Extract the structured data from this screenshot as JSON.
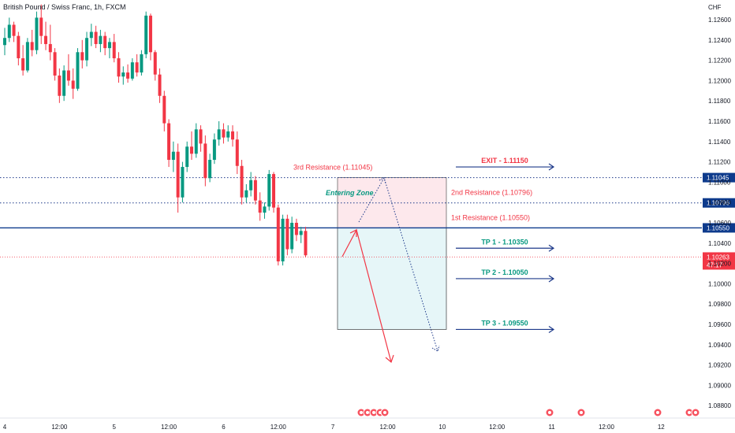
{
  "chart_data": {
    "type": "candlestick",
    "title": "British Pound / Swiss Franc, 1h, FXCM",
    "currency": "CHF",
    "y_axis": {
      "min": 1.0875,
      "max": 1.1275,
      "ticks": [
        "1.12600",
        "1.12400",
        "1.12200",
        "1.12000",
        "1.11800",
        "1.11600",
        "1.11400",
        "1.11200",
        "1.11000",
        "1.10800",
        "1.10600",
        "1.10400",
        "1.10200",
        "1.10000",
        "1.09800",
        "1.09600",
        "1.09400",
        "1.09200",
        "1.09000",
        "1.08800"
      ]
    },
    "x_axis": {
      "ticks": [
        {
          "label": "4",
          "i": 0
        },
        {
          "label": "12:00",
          "i": 12
        },
        {
          "label": "5",
          "i": 24
        },
        {
          "label": "12:00",
          "i": 36
        },
        {
          "label": "6",
          "i": 48
        },
        {
          "label": "12:00",
          "i": 60
        },
        {
          "label": "7",
          "i": 72
        },
        {
          "label": "12:00",
          "i": 84
        },
        {
          "label": "10",
          "i": 96
        },
        {
          "label": "12:00",
          "i": 108
        },
        {
          "label": "11",
          "i": 120
        },
        {
          "label": "12:00",
          "i": 132
        },
        {
          "label": "12",
          "i": 144
        }
      ]
    },
    "candles": [
      [
        1.1235,
        1.1252,
        1.1225,
        1.1242
      ],
      [
        1.1242,
        1.1262,
        1.1238,
        1.1255
      ],
      [
        1.1255,
        1.1258,
        1.1238,
        1.1244
      ],
      [
        1.1244,
        1.1248,
        1.1215,
        1.1222
      ],
      [
        1.1222,
        1.1235,
        1.1205,
        1.121
      ],
      [
        1.121,
        1.1242,
        1.1208,
        1.1238
      ],
      [
        1.1238,
        1.125,
        1.1224,
        1.123
      ],
      [
        1.123,
        1.1268,
        1.1226,
        1.1262
      ],
      [
        1.1262,
        1.1275,
        1.1236,
        1.1244
      ],
      [
        1.1244,
        1.1258,
        1.123,
        1.1236
      ],
      [
        1.1236,
        1.1255,
        1.122,
        1.1228
      ],
      [
        1.1228,
        1.1232,
        1.12,
        1.1205
      ],
      [
        1.1205,
        1.1212,
        1.1178,
        1.1185
      ],
      [
        1.1185,
        1.1215,
        1.118,
        1.121
      ],
      [
        1.121,
        1.1226,
        1.1195,
        1.12
      ],
      [
        1.12,
        1.1212,
        1.1182,
        1.1192
      ],
      [
        1.1192,
        1.1232,
        1.119,
        1.1228
      ],
      [
        1.1228,
        1.124,
        1.1212,
        1.122
      ],
      [
        1.122,
        1.1248,
        1.1214,
        1.1242
      ],
      [
        1.1242,
        1.1256,
        1.1234,
        1.1248
      ],
      [
        1.1248,
        1.1254,
        1.1232,
        1.1236
      ],
      [
        1.1236,
        1.125,
        1.1228,
        1.1244
      ],
      [
        1.1244,
        1.1248,
        1.1225,
        1.1232
      ],
      [
        1.1232,
        1.1242,
        1.1222,
        1.1238
      ],
      [
        1.1238,
        1.1246,
        1.1218,
        1.1222
      ],
      [
        1.1222,
        1.1228,
        1.1198,
        1.1204
      ],
      [
        1.1204,
        1.1214,
        1.1196,
        1.1208
      ],
      [
        1.1208,
        1.1216,
        1.1198,
        1.1202
      ],
      [
        1.1202,
        1.1222,
        1.12,
        1.1218
      ],
      [
        1.1218,
        1.1226,
        1.1204,
        1.1208
      ],
      [
        1.1208,
        1.123,
        1.1205,
        1.1226
      ],
      [
        1.1226,
        1.1268,
        1.1222,
        1.1264
      ],
      [
        1.1264,
        1.1266,
        1.122,
        1.1228
      ],
      [
        1.1228,
        1.123,
        1.12,
        1.1206
      ],
      [
        1.1206,
        1.1212,
        1.1178,
        1.1185
      ],
      [
        1.1185,
        1.119,
        1.115,
        1.1158
      ],
      [
        1.1158,
        1.1162,
        1.1115,
        1.1122
      ],
      [
        1.1122,
        1.114,
        1.111,
        1.113
      ],
      [
        1.113,
        1.1138,
        1.107,
        1.1085
      ],
      [
        1.1085,
        1.112,
        1.108,
        1.1115
      ],
      [
        1.1115,
        1.114,
        1.111,
        1.1135
      ],
      [
        1.1135,
        1.115,
        1.1122,
        1.1128
      ],
      [
        1.1128,
        1.1158,
        1.1124,
        1.1152
      ],
      [
        1.1152,
        1.1156,
        1.113,
        1.1138
      ],
      [
        1.1138,
        1.1146,
        1.1096,
        1.1104
      ],
      [
        1.1104,
        1.1128,
        1.11,
        1.1122
      ],
      [
        1.1122,
        1.1148,
        1.1118,
        1.1142
      ],
      [
        1.1142,
        1.116,
        1.1136,
        1.1152
      ],
      [
        1.1152,
        1.1158,
        1.1138,
        1.1144
      ],
      [
        1.1144,
        1.1156,
        1.114,
        1.115
      ],
      [
        1.115,
        1.1156,
        1.1135,
        1.1142
      ],
      [
        1.1142,
        1.115,
        1.1108,
        1.1116
      ],
      [
        1.1116,
        1.1122,
        1.1078,
        1.1085
      ],
      [
        1.1085,
        1.1098,
        1.108,
        1.1092
      ],
      [
        1.1092,
        1.111,
        1.1086,
        1.1102
      ],
      [
        1.1102,
        1.1106,
        1.1078,
        1.1082
      ],
      [
        1.1082,
        1.109,
        1.1062,
        1.107
      ],
      [
        1.107,
        1.108,
        1.1064,
        1.1076
      ],
      [
        1.1076,
        1.1112,
        1.1072,
        1.1108
      ],
      [
        1.1108,
        1.111,
        1.107,
        1.1075
      ],
      [
        1.1075,
        1.1078,
        1.1018,
        1.1022
      ],
      [
        1.1022,
        1.1068,
        1.1018,
        1.1064
      ],
      [
        1.1064,
        1.1068,
        1.1028,
        1.1034
      ],
      [
        1.1034,
        1.1066,
        1.103,
        1.106
      ],
      [
        1.106,
        1.1064,
        1.1042,
        1.1048
      ],
      [
        1.1048,
        1.1056,
        1.104,
        1.1052
      ],
      [
        1.1052,
        1.1056,
        1.1026,
        1.1028
      ]
    ],
    "levels": [
      {
        "label": "3rd Resistance (1.11045)",
        "price": 1.11045,
        "tag": "1.11045"
      },
      {
        "label": "2nd Resistance (1.10796)",
        "price": 1.10796,
        "tag": "1.10796"
      },
      {
        "label": "1st Resistance (1.10550)",
        "price": 1.1055,
        "tag": "1.10550"
      }
    ],
    "current_price": {
      "value": "1.10263",
      "countdown": "47:17",
      "price": 1.10263
    },
    "zone_label": "Entering Zone",
    "targets": [
      {
        "label": "EXIT - 1.11150",
        "price": 1.1115,
        "color": "#f23645"
      },
      {
        "label": "TP 1 - 1.10350",
        "price": 1.1035,
        "color": "#089981"
      },
      {
        "label": "TP 2 - 1.10050",
        "price": 1.1005,
        "color": "#089981"
      },
      {
        "label": "TP 3 - 1.09550",
        "price": 1.0955,
        "color": "#089981"
      }
    ],
    "colors": {
      "up": "#089981",
      "down": "#f23645",
      "support_line": "#0d3a8c",
      "dotted_line": "#1e3a8a",
      "arrow_blue": "#1e3a8a",
      "pink_zone": "#fde8ec",
      "blue_zone": "#e6f6f8"
    }
  }
}
